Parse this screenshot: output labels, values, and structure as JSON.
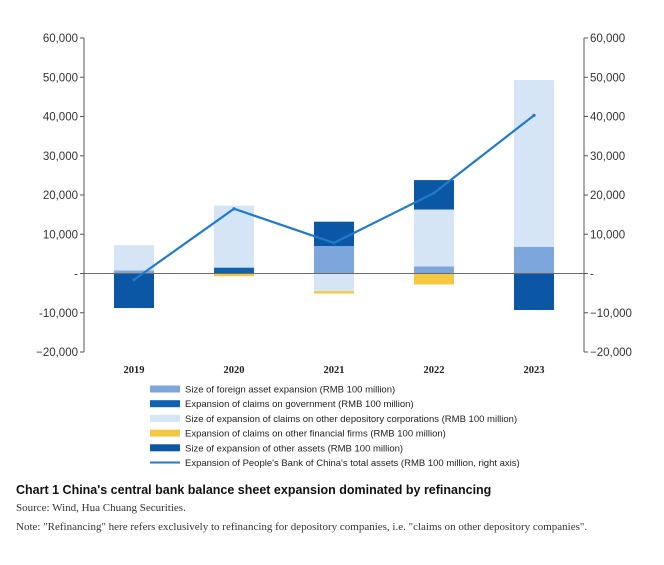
{
  "chart_data": {
    "type": "bar",
    "stacked": true,
    "categories": [
      "2019",
      "2020",
      "2021",
      "2022",
      "2023"
    ],
    "ylim": [
      -20000,
      60000
    ],
    "y2lim": [
      -20000,
      60000
    ],
    "yticks": [
      -20000,
      -10000,
      0,
      10000,
      20000,
      30000,
      40000,
      50000,
      60000
    ],
    "ytick_labels": [
      "−20,000",
      "-10,000",
      "-",
      "10,000",
      "20,000",
      "30,000",
      "40,000",
      "50,000",
      "60,000"
    ],
    "y2tick_labels": [
      "−20,000",
      "−10,000",
      "-",
      "10,000",
      "20,000",
      "30,000",
      "40,000",
      "50,000",
      "60,000"
    ],
    "series": [
      {
        "name": "Size of foreign asset expansion (RMB 100 million)",
        "kind": "bar",
        "color": "#7da7dc",
        "values": [
          800,
          0,
          7000,
          1800,
          6800
        ]
      },
      {
        "name": "Expansion of claims on government (RMB 100 million)",
        "kind": "bar",
        "color": "#0e62b0",
        "values": [
          0,
          1500,
          0,
          0,
          0
        ]
      },
      {
        "name": "Size of expansion of claims on other depository corporations (RMB 100 million)",
        "kind": "bar",
        "color": "#d6e5f6",
        "values": [
          6400,
          15800,
          -4500,
          14500,
          42500
        ]
      },
      {
        "name": "Expansion of claims on other financial firms (RMB 100 million)",
        "kind": "bar",
        "color": "#f5c842",
        "values": [
          0,
          -700,
          -600,
          -2800,
          0
        ]
      },
      {
        "name": "Size of expansion of other assets (RMB 100 million)",
        "kind": "bar",
        "color": "#0c56a6",
        "values": [
          -8800,
          0,
          6200,
          7500,
          -9300
        ]
      },
      {
        "name": "Expansion of People's Bank of China's total assets (RMB 100 million, right axis)",
        "kind": "line",
        "color": "#1f7bc8",
        "values": [
          -1600,
          16500,
          7800,
          20500,
          40300
        ]
      }
    ],
    "title": "Chart 1 China's central bank balance sheet expansion dominated by refinancing",
    "legend_position": "bottom"
  },
  "caption": {
    "title": "Chart 1 China's central bank balance sheet expansion dominated by refinancing",
    "source": "Source: Wind, Hua Chuang Securities.",
    "note": "Note: \"Refinancing\" here refers exclusively to refinancing for depository companies, i.e. \"claims on other depository companies\"."
  }
}
